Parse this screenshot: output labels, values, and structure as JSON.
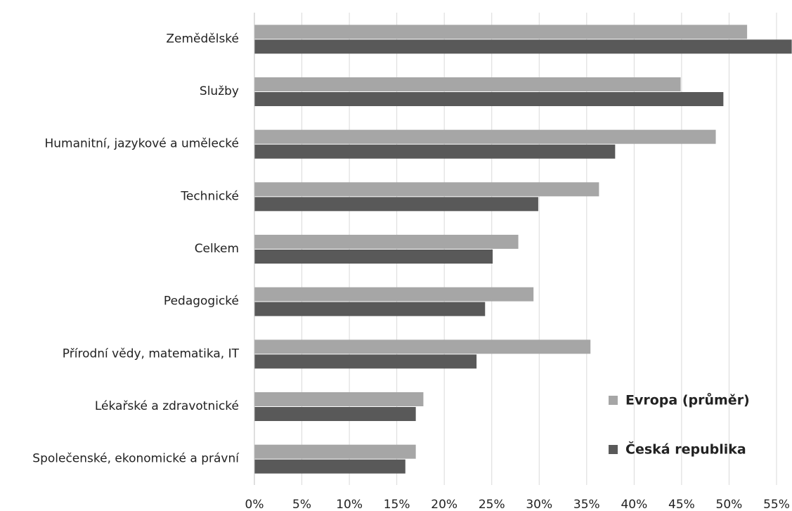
{
  "chart_data": {
    "type": "barh",
    "categories": [
      "Zemědělské",
      "Služby",
      "Humanitní, jazykové a umělecké",
      "Technické",
      "Celkem",
      "Pedagogické",
      "Přírodní vědy, matematika, IT",
      "Lékařské a zdravotnické",
      "Společenské, ekonomické a právní"
    ],
    "series": [
      {
        "name": "Evropa (průměr)",
        "color": "#a6a6a6",
        "values": [
          51.9,
          44.9,
          48.6,
          36.3,
          27.8,
          29.4,
          35.4,
          17.8,
          17.0
        ]
      },
      {
        "name": "Česká republika",
        "color": "#595959",
        "values": [
          56.6,
          49.4,
          38.0,
          29.9,
          25.1,
          24.3,
          23.4,
          17.0,
          15.9
        ]
      }
    ],
    "xlim": [
      0,
      55
    ],
    "xticks": [
      {
        "value": 0,
        "label": "0%"
      },
      {
        "value": 5,
        "label": "5%"
      },
      {
        "value": 10,
        "label": "10%"
      },
      {
        "value": 15,
        "label": "15%"
      },
      {
        "value": 20,
        "label": "20%"
      },
      {
        "value": 25,
        "label": "25%"
      },
      {
        "value": 30,
        "label": "30%"
      },
      {
        "value": 35,
        "label": "35%"
      },
      {
        "value": 40,
        "label": "40%"
      },
      {
        "value": 45,
        "label": "45%"
      },
      {
        "value": 50,
        "label": "50%"
      },
      {
        "value": 55,
        "label": "55%"
      }
    ],
    "grid": true,
    "legend": "lower right"
  }
}
